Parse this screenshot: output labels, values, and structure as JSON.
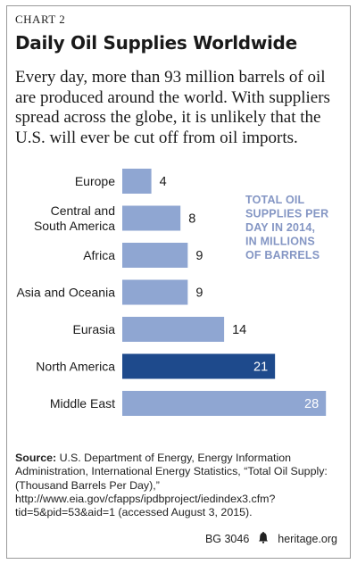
{
  "header": {
    "chart_label": "CHART 2",
    "title": "Daily Oil Supplies Worldwide",
    "subtitle": "Every day, more than 93 million barrels of oil are produced around the world. With suppliers spread across the globe, it is unlikely that the U.S. will ever be cut off from oil imports."
  },
  "chart_data": {
    "type": "bar",
    "orientation": "horizontal",
    "annotation": [
      "TOTAL OIL",
      "SUPPLIES PER",
      "DAY IN 2014,",
      "IN MILLIONS",
      "OF BARRELS"
    ],
    "categories": [
      [
        "Europe"
      ],
      [
        "Central and",
        "South America"
      ],
      [
        "Africa"
      ],
      [
        "Asia and Oceania"
      ],
      [
        "Eurasia"
      ],
      [
        "North America"
      ],
      [
        "Middle East"
      ]
    ],
    "values": [
      4,
      8,
      9,
      9,
      14,
      21,
      28
    ],
    "highlight_index": 5,
    "colors": {
      "bar": "#8fa6d2",
      "highlight": "#1e4a8c",
      "label_on_bar": "#ffffff",
      "label": "#1a1a1a",
      "annotation": "#8496c4"
    }
  },
  "source": {
    "label": "Source:",
    "text": "U.S. Department of Energy, Energy Information Administration, International Energy Statistics, “Total Oil Supply: (Thousand Barrels Per Day),” http://www.eia.gov/cfapps/ipdbproject/iedindex3.cfm?tid=5&pid=53&aid=1 (accessed August 3, 2015)."
  },
  "footer": {
    "code": "BG 3046",
    "site": "heritage.org",
    "bell_icon": "liberty-bell-icon"
  }
}
